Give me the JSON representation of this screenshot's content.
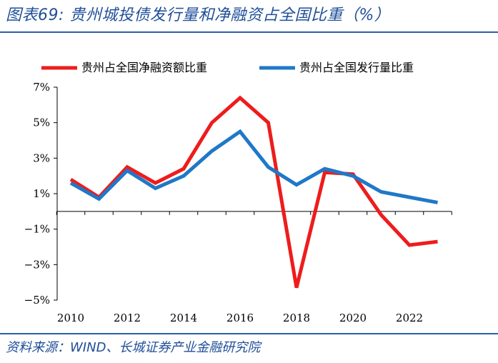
{
  "figure": {
    "title": "图表69:  贵州城投债发行量和净融资占全国比重（%）",
    "source": "资料来源：WIND、长城证券产业金融研究院"
  },
  "colors": {
    "title_blue": "#1f4e99",
    "rule_blue": "#2b5fa8",
    "series_red": "#ee1c1c",
    "series_blue": "#1f78c8"
  },
  "chart_data": {
    "type": "line",
    "title": "",
    "xlabel": "",
    "ylabel": "",
    "x": [
      2010,
      2011,
      2012,
      2013,
      2014,
      2015,
      2016,
      2017,
      2018,
      2019,
      2020,
      2021,
      2022,
      2023
    ],
    "series": [
      {
        "name": "贵州占全国净融资额比重",
        "color": "#ee1c1c",
        "values": [
          1.8,
          0.8,
          2.5,
          1.6,
          2.4,
          5.0,
          6.4,
          5.0,
          -4.3,
          2.2,
          2.1,
          -0.2,
          -1.9,
          -1.7
        ]
      },
      {
        "name": "贵州占全国发行量比重",
        "color": "#1f78c8",
        "values": [
          1.6,
          0.7,
          2.3,
          1.3,
          2.0,
          3.4,
          4.5,
          2.5,
          1.5,
          2.4,
          2.0,
          1.1,
          0.8,
          0.5
        ]
      }
    ],
    "ylim": [
      -5,
      7
    ],
    "y_ticks": [
      7,
      5,
      3,
      1,
      -1,
      -3,
      -5
    ],
    "y_tick_labels": [
      "7%",
      "5%",
      "3%",
      "1%",
      "−1%",
      "−3%",
      "−5%"
    ],
    "x_ticks": [
      2010,
      2012,
      2014,
      2016,
      2018,
      2020,
      2022
    ],
    "x_tick_labels": [
      "2010",
      "2012",
      "2014",
      "2016",
      "2018",
      "2020",
      "2022"
    ],
    "legend_position": "top",
    "grid": false
  }
}
